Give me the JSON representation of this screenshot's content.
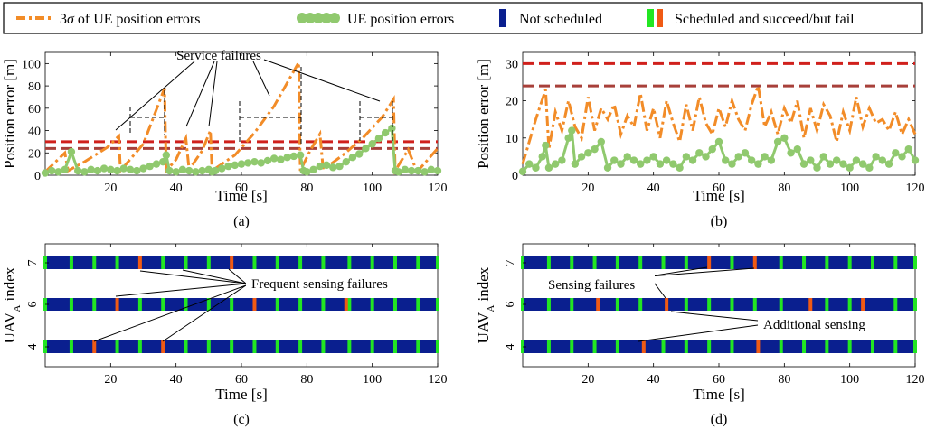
{
  "legend": {
    "items": [
      {
        "label_pre": "3",
        "label_sym": "σ",
        "label_post": " of UE position errors",
        "color": "#f28c28",
        "style": "dashdot"
      },
      {
        "label": "UE position errors",
        "color": "#90c96e",
        "style": "dots"
      },
      {
        "label": "Not scheduled",
        "color": "#0a1f8f",
        "style": "bar"
      },
      {
        "label": "Scheduled and succeed/but fail",
        "colors": [
          "#22e622",
          "#f05a14"
        ],
        "style": "double-bar"
      }
    ]
  },
  "colors": {
    "sigma": "#f28c28",
    "ue": "#90c96e",
    "not_scheduled": "#0a1f8f",
    "success": "#22e622",
    "fail": "#f05a14",
    "threshold_upper": "#d0201c",
    "threshold_lower": "#a8403a"
  },
  "chart_data": [
    {
      "id": "a",
      "type": "line",
      "caption": "(a)",
      "xlabel": "Time [s]",
      "ylabel": "Position error [m]",
      "xlim": [
        0,
        120
      ],
      "ylim": [
        0,
        110
      ],
      "xticks": [
        20,
        40,
        60,
        80,
        100,
        120
      ],
      "yticks": [
        0,
        20,
        40,
        60,
        80,
        100
      ],
      "thresholds": [
        30,
        24
      ],
      "series": [
        {
          "key": "sigma",
          "x": [
            0,
            6,
            7,
            12,
            19,
            22.5,
            23,
            30,
            36.5,
            37,
            40,
            43,
            44,
            48,
            50.5,
            51,
            58,
            64,
            70,
            77.5,
            78,
            81,
            84,
            85,
            91,
            97,
            103,
            106.5,
            107,
            111,
            113,
            114,
            120
          ],
          "y": [
            3,
            20,
            4,
            12,
            25,
            35,
            4,
            28,
            78,
            4,
            14,
            33,
            5,
            22,
            40,
            4,
            18,
            38,
            62,
            101,
            4,
            22,
            37,
            5,
            18,
            33,
            52,
            68,
            4,
            23,
            8,
            4,
            24
          ]
        },
        {
          "key": "ue",
          "x": [
            0,
            2,
            4,
            6,
            8,
            10,
            12,
            14,
            16,
            18,
            20,
            22,
            24,
            26,
            28,
            30,
            32,
            34,
            36,
            37,
            38,
            40,
            42,
            44,
            46,
            48,
            50,
            51,
            52,
            54,
            56,
            58,
            60,
            62,
            64,
            66,
            68,
            70,
            72,
            74,
            76,
            78,
            79,
            80,
            82,
            84,
            86,
            88,
            90,
            92,
            94,
            96,
            98,
            100,
            102,
            104,
            106,
            107,
            108,
            110,
            112,
            114,
            116,
            118,
            120
          ],
          "y": [
            2,
            4,
            3,
            5,
            21,
            4,
            3,
            5,
            4,
            6,
            5,
            4,
            6,
            5,
            4,
            6,
            8,
            10,
            12,
            18,
            4,
            3,
            5,
            4,
            3,
            4,
            5,
            3,
            4,
            6,
            8,
            9,
            10,
            11,
            12,
            11,
            13,
            15,
            14,
            16,
            17,
            18,
            4,
            3,
            5,
            8,
            9,
            7,
            8,
            12,
            16,
            19,
            24,
            28,
            33,
            38,
            42,
            4,
            3,
            5,
            4,
            4,
            3,
            5,
            4
          ]
        }
      ],
      "annotations": {
        "service_failures": "Service failures"
      }
    },
    {
      "id": "b",
      "type": "line",
      "caption": "(b)",
      "xlabel": "Time [s]",
      "ylabel": "Position error [m]",
      "xlim": [
        0,
        120
      ],
      "ylim": [
        0,
        33
      ],
      "xticks": [
        20,
        40,
        60,
        80,
        100,
        120
      ],
      "yticks": [
        0,
        10,
        20,
        30
      ],
      "thresholds": [
        30,
        24
      ],
      "series": [
        {
          "key": "sigma",
          "x": [
            0,
            4,
            7,
            8,
            10,
            12,
            14,
            16,
            18,
            20,
            22,
            24,
            26,
            28,
            30,
            32,
            34,
            36,
            38,
            40,
            42,
            44,
            46,
            48,
            50,
            52,
            54,
            56,
            58,
            60,
            62,
            64,
            66,
            68,
            70,
            72,
            74,
            76,
            78,
            80,
            82,
            84,
            86,
            88,
            90,
            92,
            94,
            96,
            98,
            100,
            102,
            104,
            106,
            108,
            110,
            112,
            114,
            116,
            118,
            120
          ],
          "y": [
            3,
            15,
            23,
            7,
            17,
            12,
            20,
            13,
            10,
            21,
            12,
            18,
            15,
            19,
            11,
            16,
            13,
            22,
            12,
            18,
            10,
            20,
            14,
            9,
            19,
            12,
            21,
            14,
            11,
            18,
            13,
            20,
            15,
            12,
            19,
            24,
            13,
            17,
            11,
            18,
            14,
            20,
            10,
            18,
            12,
            19,
            16,
            9,
            17,
            12,
            21,
            13,
            18,
            14,
            15,
            12,
            17,
            11,
            15,
            11
          ]
        },
        {
          "key": "ue",
          "x": [
            0,
            2,
            4,
            6,
            7,
            8,
            10,
            12,
            14,
            15,
            16,
            18,
            20,
            22,
            24,
            26,
            28,
            30,
            32,
            34,
            36,
            38,
            40,
            42,
            44,
            46,
            48,
            50,
            52,
            54,
            56,
            58,
            60,
            62,
            64,
            66,
            68,
            70,
            72,
            74,
            76,
            78,
            80,
            82,
            84,
            86,
            88,
            90,
            92,
            94,
            96,
            98,
            100,
            102,
            104,
            106,
            108,
            110,
            112,
            114,
            116,
            118,
            120
          ],
          "y": [
            1,
            3,
            2,
            5,
            8,
            2,
            3,
            4,
            10,
            12,
            3,
            5,
            6,
            7,
            9,
            2,
            4,
            3,
            5,
            4,
            3,
            4,
            5,
            3,
            4,
            3,
            2,
            5,
            4,
            6,
            5,
            7,
            9,
            4,
            3,
            5,
            6,
            4,
            3,
            5,
            4,
            9,
            10,
            6,
            7,
            3,
            4,
            2,
            5,
            3,
            4,
            3,
            2,
            4,
            3,
            2,
            5,
            4,
            3,
            6,
            5,
            7,
            4
          ]
        }
      ],
      "annotations": {}
    },
    {
      "id": "c",
      "type": "schedule",
      "caption": "(c)",
      "xlabel": "Time [s]",
      "ylabel_main": "UAV",
      "ylabel_sub": "A",
      "ylabel_post": " index",
      "xlim": [
        0,
        120
      ],
      "xticks": [
        20,
        40,
        60,
        80,
        100,
        120
      ],
      "rows": [
        {
          "label": "7",
          "success": [
            0,
            8,
            15,
            22,
            36,
            43,
            50,
            64,
            71,
            78,
            85,
            93,
            100,
            107,
            114,
            120
          ],
          "fail": [
            29,
            57
          ]
        },
        {
          "label": "6",
          "success": [
            0,
            8,
            15,
            29,
            36,
            43,
            50,
            57,
            71,
            78,
            85,
            93,
            100,
            107,
            114,
            120
          ],
          "fail": [
            22,
            64,
            92
          ]
        },
        {
          "label": "4",
          "success": [
            0,
            8,
            22,
            29,
            43,
            50,
            57,
            64,
            71,
            78,
            85,
            93,
            100,
            107,
            114,
            120
          ],
          "fail": [
            15,
            36
          ]
        }
      ],
      "annotations": {
        "frequent_sensing_failures": "Frequent sensing failures"
      }
    },
    {
      "id": "d",
      "type": "schedule",
      "caption": "(d)",
      "xlabel": "Time [s]",
      "ylabel_main": "UAV",
      "ylabel_sub": "A",
      "ylabel_post": " index",
      "xlim": [
        0,
        120
      ],
      "xticks": [
        20,
        40,
        60,
        80,
        100,
        120
      ],
      "rows": [
        {
          "label": "7",
          "success": [
            0,
            8,
            15,
            22,
            29,
            36,
            43,
            50,
            64,
            79,
            86,
            93,
            100,
            107,
            114,
            120
          ],
          "fail": [
            57,
            71
          ]
        },
        {
          "label": "6",
          "success": [
            0,
            8,
            15,
            29,
            36,
            50,
            57,
            64,
            71,
            79,
            93,
            100,
            114,
            120
          ],
          "fail": [
            23,
            44,
            88,
            104
          ]
        },
        {
          "label": "4",
          "success": [
            0,
            8,
            15,
            22,
            29,
            43,
            50,
            57,
            64,
            79,
            86,
            93,
            100,
            107,
            114,
            120
          ],
          "fail": [
            37,
            72
          ]
        }
      ],
      "annotations": {
        "sensing_failures": "Sensing failures",
        "additional_sensing": "Additional sensing"
      }
    }
  ]
}
